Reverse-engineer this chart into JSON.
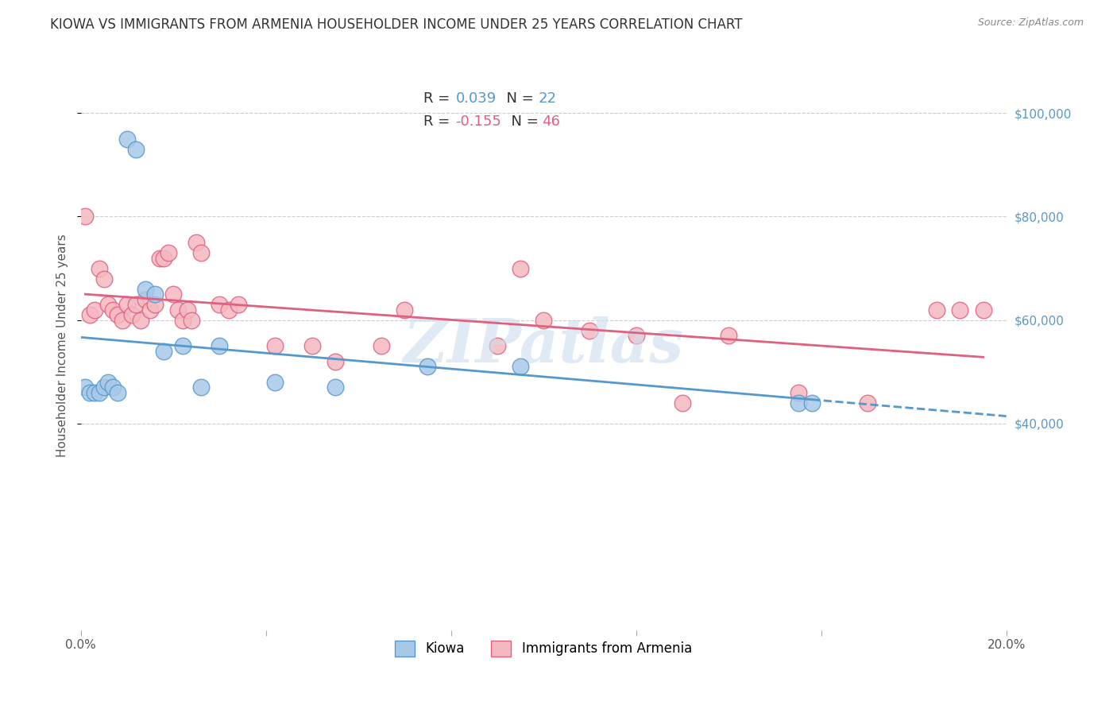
{
  "title": "KIOWA VS IMMIGRANTS FROM ARMENIA HOUSEHOLDER INCOME UNDER 25 YEARS CORRELATION CHART",
  "source": "Source: ZipAtlas.com",
  "ylabel": "Householder Income Under 25 years",
  "xlim": [
    0,
    0.2
  ],
  "ylim": [
    0,
    110000
  ],
  "yticks": [
    40000,
    60000,
    80000,
    100000
  ],
  "ytick_labels": [
    "$40,000",
    "$60,000",
    "$80,000",
    "$100,000"
  ],
  "xticks": [
    0.0,
    0.04,
    0.08,
    0.12,
    0.16,
    0.2
  ],
  "xtick_labels": [
    "0.0%",
    "",
    "",
    "",
    "",
    "20.0%"
  ],
  "watermark": "ZIPatlas",
  "kiowa_x": [
    0.001,
    0.002,
    0.003,
    0.004,
    0.005,
    0.006,
    0.007,
    0.008,
    0.01,
    0.012,
    0.014,
    0.016,
    0.018,
    0.022,
    0.026,
    0.03,
    0.042,
    0.055,
    0.075,
    0.095,
    0.155,
    0.158
  ],
  "kiowa_y": [
    47000,
    46000,
    46000,
    46000,
    47000,
    48000,
    47000,
    46000,
    95000,
    93000,
    66000,
    65000,
    54000,
    55000,
    47000,
    55000,
    48000,
    47000,
    51000,
    51000,
    44000,
    44000
  ],
  "armenia_x": [
    0.001,
    0.002,
    0.003,
    0.004,
    0.005,
    0.006,
    0.007,
    0.008,
    0.009,
    0.01,
    0.011,
    0.012,
    0.013,
    0.014,
    0.015,
    0.016,
    0.017,
    0.018,
    0.019,
    0.02,
    0.021,
    0.022,
    0.023,
    0.024,
    0.025,
    0.026,
    0.03,
    0.032,
    0.034,
    0.042,
    0.05,
    0.055,
    0.065,
    0.07,
    0.09,
    0.095,
    0.1,
    0.11,
    0.12,
    0.13,
    0.14,
    0.155,
    0.17,
    0.185,
    0.19,
    0.195
  ],
  "armenia_y": [
    80000,
    61000,
    62000,
    70000,
    68000,
    63000,
    62000,
    61000,
    60000,
    63000,
    61000,
    63000,
    60000,
    64000,
    62000,
    63000,
    72000,
    72000,
    73000,
    65000,
    62000,
    60000,
    62000,
    60000,
    75000,
    73000,
    63000,
    62000,
    63000,
    55000,
    55000,
    52000,
    55000,
    62000,
    55000,
    70000,
    60000,
    58000,
    57000,
    44000,
    57000,
    46000,
    44000,
    62000,
    62000,
    62000
  ],
  "blue_color": "#a8c8e8",
  "pink_color": "#f4b8c0",
  "blue_edge_color": "#5599cc",
  "pink_edge_color": "#e06080",
  "blue_line_color": "#5599cc",
  "pink_line_color": "#e06080",
  "background_color": "#ffffff",
  "grid_color": "#cccccc",
  "title_fontsize": 12,
  "axis_label_fontsize": 11,
  "tick_fontsize": 11,
  "right_tick_color": "#5599cc"
}
